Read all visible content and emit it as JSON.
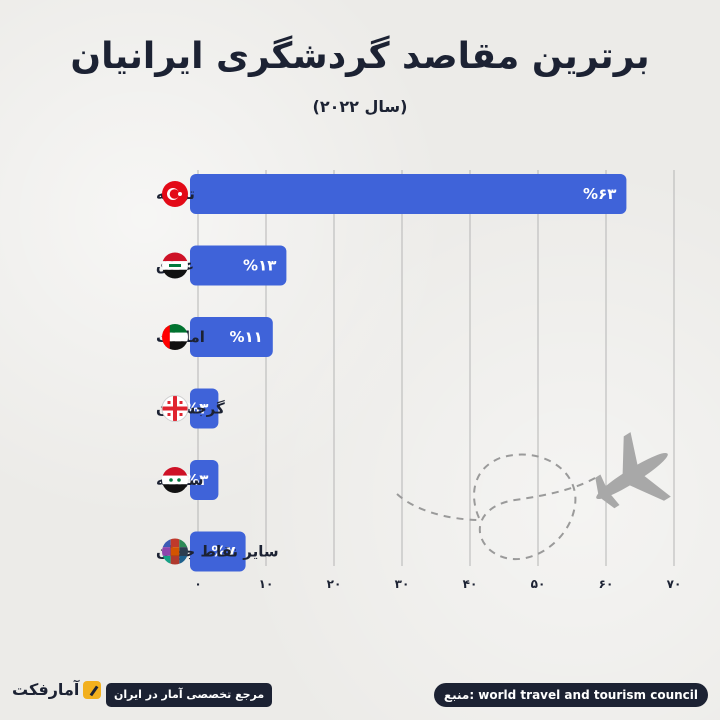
{
  "header": {
    "title": "برترین مقاصد گردشگری ایرانیان",
    "subtitle": "(سال ۲۰۲۲)"
  },
  "chart_data": {
    "type": "bar",
    "orientation": "horizontal",
    "title": "برترین مقاصد گردشگری ایرانیان",
    "subtitle": "(سال ۲۰۲۲)",
    "categories": [
      "ترکیه",
      "عراق",
      "امارات",
      "گرجستان",
      "سوریه",
      "سایر نقاط جهان"
    ],
    "values": [
      63,
      13,
      11,
      3,
      3,
      7
    ],
    "value_labels": [
      "%۶۳",
      "%۱۳",
      "%۱۱",
      "%۳",
      "%۳",
      "%۷"
    ],
    "flags": [
      "turkey-flag",
      "iraq-flag",
      "uae-flag",
      "georgia-flag",
      "syria-flag",
      "world-flags"
    ],
    "xlim": [
      0,
      70
    ],
    "xticks": [
      0,
      10,
      20,
      30,
      40,
      50,
      60,
      70
    ],
    "xtick_labels": [
      "۰",
      "۱۰",
      "۲۰",
      "۳۰",
      "۴۰",
      "۵۰",
      "۶۰",
      "۷۰"
    ],
    "grid": true,
    "bar_color": "#3f63d9"
  },
  "footer": {
    "source": "منبع: world travel and tourism council",
    "tagline": "مرجع تخصصی آمار در ایران",
    "logo": "آمارفکت"
  },
  "decor": {
    "airplane": "airplane-icon",
    "path": "dashed-flight-path"
  },
  "colors": {
    "dark": "#1c2233",
    "bar": "#3f63d9",
    "grid": "#b5b5b5",
    "accent": "#f2b01e"
  }
}
